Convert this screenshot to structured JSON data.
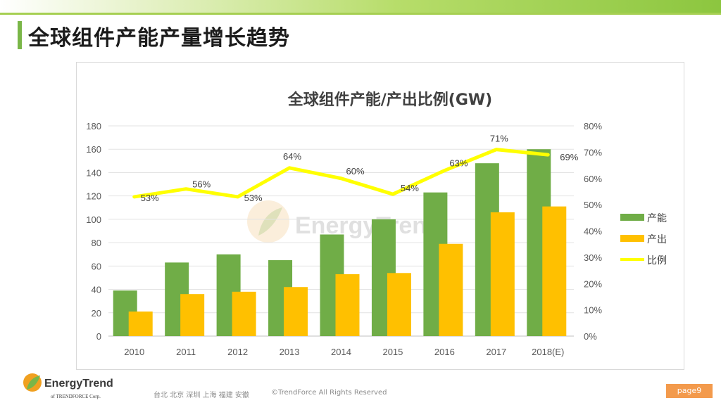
{
  "page": {
    "title": "全球组件产能产量增长趋势",
    "page_number": "page9"
  },
  "footer": {
    "logo_name": "EnergyTrend",
    "logo_sub": "of TRENDFORCE Corp.",
    "offices": "台北  北京  深圳  上海  福建  安徽",
    "copyright": "©TrendForce All Rights Reserved"
  },
  "watermark": "EnergyTrend",
  "colors": {
    "capacity": "#70ad47",
    "output": "#ffc000",
    "ratio": "#ffff00",
    "accent": "#7ab648",
    "page_badge": "#f39a4c"
  },
  "chart_data": {
    "type": "bar",
    "title": "全球组件产能/产出比例(GW)",
    "categories": [
      "2010",
      "2011",
      "2012",
      "2013",
      "2014",
      "2015",
      "2016",
      "2017",
      "2018(E)"
    ],
    "series": [
      {
        "name": "产能",
        "type": "bar",
        "axis": "left",
        "values": [
          39,
          63,
          70,
          65,
          87,
          100,
          123,
          148,
          160
        ]
      },
      {
        "name": "产出",
        "type": "bar",
        "axis": "left",
        "values": [
          21,
          36,
          38,
          42,
          53,
          54,
          79,
          106,
          111
        ]
      },
      {
        "name": "比例",
        "type": "line",
        "axis": "right",
        "values": [
          53,
          56,
          53,
          64,
          60,
          54,
          63,
          71,
          69
        ],
        "labels": [
          "53%",
          "56%",
          "53%",
          "64%",
          "60%",
          "54%",
          "63%",
          "71%",
          "69%"
        ]
      }
    ],
    "y_left": {
      "min": 0,
      "max": 180,
      "ticks": [
        "0",
        "20",
        "40",
        "60",
        "80",
        "100",
        "120",
        "140",
        "160",
        "180"
      ]
    },
    "y_right": {
      "min": 0,
      "max": 80,
      "ticks": [
        "0%",
        "10%",
        "20%",
        "30%",
        "40%",
        "50%",
        "60%",
        "70%",
        "80%"
      ]
    },
    "grid": true,
    "legend_position": "right"
  }
}
